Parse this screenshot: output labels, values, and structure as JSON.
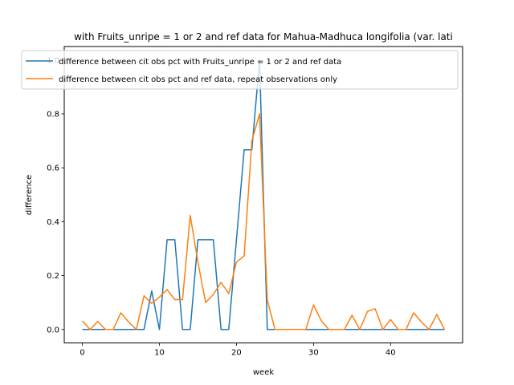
{
  "chart_data": {
    "type": "line",
    "title": "with Fruits_unripe = 1 or 2 and ref data for Mahua-Madhuca longifolia (var. lati",
    "xlabel": "week",
    "ylabel": "difference",
    "xlim": [
      -2.35,
      49.35
    ],
    "ylim": [
      -0.05,
      1.05
    ],
    "xticks": [
      0,
      10,
      20,
      30,
      40
    ],
    "yticks": [
      0.0,
      0.2,
      0.4,
      0.6,
      0.8,
      1.0
    ],
    "xtick_labels": [
      "0",
      "10",
      "20",
      "30",
      "40"
    ],
    "ytick_labels": [
      "0.0",
      "0.2",
      "0.4",
      "0.6",
      "0.8",
      "1.0"
    ],
    "legend_position": "upper-left",
    "grid": false,
    "series": [
      {
        "name": "difference between cit obs pct with Fruits_unripe = 1 or 2 and ref data",
        "color": "#1f77b4",
        "x": [
          0,
          1,
          2,
          3,
          4,
          5,
          6,
          7,
          8,
          9,
          10,
          11,
          12,
          13,
          14,
          15,
          16,
          17,
          18,
          19,
          20,
          21,
          22,
          23,
          24,
          25,
          26,
          27,
          28,
          29,
          30,
          31,
          32,
          33,
          34,
          35,
          36,
          37,
          38,
          39,
          40,
          41,
          42,
          43,
          44,
          45,
          46,
          47
        ],
        "y": [
          0,
          0,
          0,
          0,
          0,
          0,
          0,
          0,
          0,
          0.143,
          0,
          0.333,
          0.333,
          0,
          0,
          0.333,
          0.333,
          0.333,
          0,
          0,
          0.333,
          0.667,
          0.667,
          1.0,
          0,
          0,
          0,
          0,
          0,
          0,
          0,
          0,
          0,
          0,
          0,
          0,
          0,
          0,
          0,
          0,
          0,
          0,
          0,
          0,
          0,
          0,
          0,
          0
        ]
      },
      {
        "name": "difference between cit obs pct and ref data, repeat observations only",
        "color": "#ff7f0e",
        "x": [
          0,
          1,
          2,
          3,
          4,
          5,
          6,
          7,
          8,
          9,
          10,
          11,
          12,
          13,
          14,
          15,
          16,
          17,
          18,
          19,
          20,
          21,
          22,
          23,
          24,
          25,
          26,
          27,
          28,
          29,
          30,
          31,
          32,
          33,
          34,
          35,
          36,
          37,
          38,
          39,
          40,
          41,
          42,
          43,
          44,
          45,
          46,
          47
        ],
        "y": [
          0.032,
          0,
          0.03,
          0,
          0,
          0.062,
          0.028,
          0,
          0.125,
          0.097,
          0.12,
          0.148,
          0.111,
          0.111,
          0.423,
          0.25,
          0.1,
          0.13,
          0.175,
          0.133,
          0.25,
          0.273,
          0.7,
          0.8,
          0.11,
          0,
          0,
          0,
          0,
          0,
          0.091,
          0.033,
          0,
          0,
          0,
          0.053,
          0,
          0.067,
          0.077,
          0,
          0.037,
          0,
          0,
          0.062,
          0.028,
          0,
          0.056,
          0
        ]
      }
    ]
  }
}
